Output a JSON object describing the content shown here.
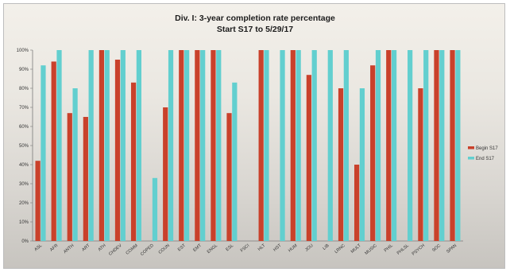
{
  "chart_data": {
    "type": "bar",
    "title": "Div. I: 3-year completion rate percentage",
    "subtitle": "Start S17 to 5/29/17",
    "categories": [
      "ASL",
      "AFR",
      "ANTH",
      "ART",
      "ATH",
      "CHDEV",
      "COMM",
      "COPED",
      "COUN",
      "EST",
      "EMT",
      "ENGL",
      "ESL",
      "FSCI",
      "HLT",
      "HST",
      "HUM",
      "JOU",
      "LIB",
      "LRNC",
      "MULT",
      "MUSIC",
      "PHIL",
      "PHLSL",
      "PSYCH",
      "SOC",
      "SPAN"
    ],
    "series": [
      {
        "name": "Begin S17",
        "color": "#c9412b",
        "values": [
          42,
          94,
          67,
          65,
          100,
          95,
          83,
          0,
          70,
          100,
          100,
          100,
          67,
          0,
          100,
          0,
          100,
          87,
          0,
          80,
          40,
          92,
          100,
          0,
          80,
          100,
          100
        ]
      },
      {
        "name": "End S17",
        "color": "#62cfcf",
        "values": [
          92,
          100,
          80,
          100,
          100,
          100,
          100,
          33,
          100,
          100,
          100,
          100,
          83,
          0,
          100,
          100,
          100,
          100,
          100,
          100,
          80,
          100,
          100,
          100,
          100,
          100,
          100
        ]
      }
    ],
    "yticks": [
      "0%",
      "10%",
      "20%",
      "30%",
      "40%",
      "50%",
      "60%",
      "70%",
      "80%",
      "90%",
      "100%"
    ],
    "ylim": [
      0,
      100
    ],
    "legend_position": "right",
    "grid": false
  }
}
